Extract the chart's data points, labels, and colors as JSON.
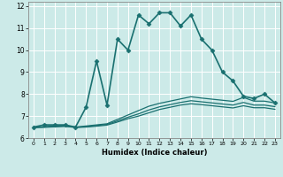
{
  "xlabel": "Humidex (Indice chaleur)",
  "bg_color": "#cceae8",
  "grid_color": "#ffffff",
  "line_color": "#1a7070",
  "xlim": [
    -0.5,
    23.5
  ],
  "ylim": [
    6,
    12.2
  ],
  "yticks": [
    6,
    7,
    8,
    9,
    10,
    11,
    12
  ],
  "xticks": [
    0,
    1,
    2,
    3,
    4,
    5,
    6,
    7,
    8,
    9,
    10,
    11,
    12,
    13,
    14,
    15,
    16,
    17,
    18,
    19,
    20,
    21,
    22,
    23
  ],
  "series": [
    {
      "x": [
        0,
        1,
        2,
        3,
        4,
        5,
        6,
        7,
        8,
        9,
        10,
        11,
        12,
        13,
        14,
        15,
        16,
        17,
        18,
        19,
        20,
        21,
        22,
        23
      ],
      "y": [
        6.5,
        6.6,
        6.6,
        6.6,
        6.5,
        7.4,
        9.5,
        7.5,
        10.5,
        10.0,
        11.6,
        11.2,
        11.7,
        11.7,
        11.1,
        11.6,
        10.5,
        10.0,
        9.0,
        8.6,
        7.9,
        7.8,
        8.0,
        7.6
      ],
      "has_markers": true,
      "linewidth": 1.2,
      "markersize": 2.5
    },
    {
      "x": [
        0,
        1,
        2,
        3,
        4,
        5,
        6,
        7,
        8,
        9,
        10,
        11,
        12,
        13,
        14,
        15,
        16,
        17,
        18,
        19,
        20,
        21,
        22,
        23
      ],
      "y": [
        6.48,
        6.52,
        6.55,
        6.57,
        6.5,
        6.55,
        6.6,
        6.65,
        6.85,
        7.05,
        7.25,
        7.45,
        7.58,
        7.68,
        7.78,
        7.88,
        7.82,
        7.77,
        7.72,
        7.67,
        7.85,
        7.68,
        7.68,
        7.6
      ],
      "has_markers": false,
      "linewidth": 0.9
    },
    {
      "x": [
        0,
        1,
        2,
        3,
        4,
        5,
        6,
        7,
        8,
        9,
        10,
        11,
        12,
        13,
        14,
        15,
        16,
        17,
        18,
        19,
        20,
        21,
        22,
        23
      ],
      "y": [
        6.48,
        6.5,
        6.53,
        6.55,
        6.49,
        6.52,
        6.57,
        6.62,
        6.78,
        6.95,
        7.1,
        7.28,
        7.42,
        7.52,
        7.62,
        7.7,
        7.65,
        7.6,
        7.55,
        7.5,
        7.62,
        7.5,
        7.5,
        7.43
      ],
      "has_markers": false,
      "linewidth": 0.9
    },
    {
      "x": [
        0,
        1,
        2,
        3,
        4,
        5,
        6,
        7,
        8,
        9,
        10,
        11,
        12,
        13,
        14,
        15,
        16,
        17,
        18,
        19,
        20,
        21,
        22,
        23
      ],
      "y": [
        6.48,
        6.49,
        6.51,
        6.53,
        6.48,
        6.5,
        6.54,
        6.59,
        6.73,
        6.88,
        7.0,
        7.15,
        7.3,
        7.4,
        7.5,
        7.56,
        7.52,
        7.47,
        7.42,
        7.37,
        7.47,
        7.38,
        7.38,
        7.31
      ],
      "has_markers": false,
      "linewidth": 0.9
    }
  ]
}
